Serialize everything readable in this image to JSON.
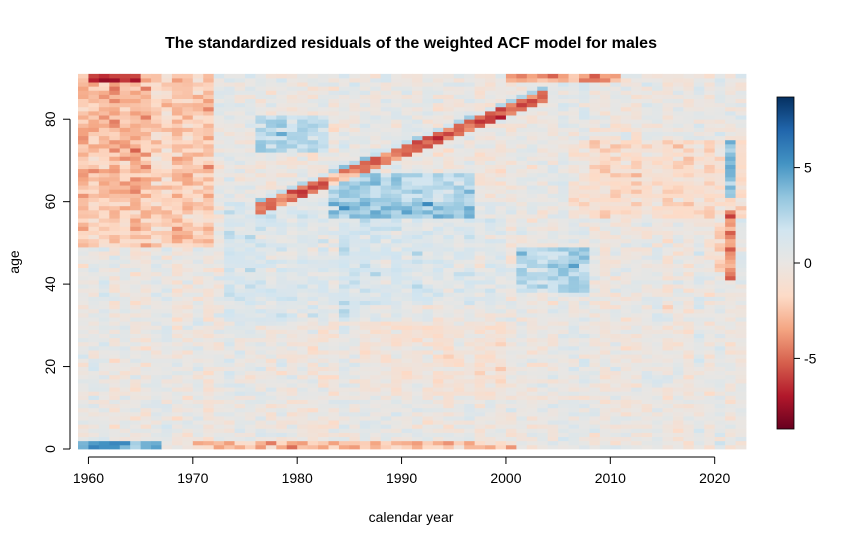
{
  "chart_data": {
    "type": "heatmap",
    "title": "The standardized residuals of the weighted ACF model for males",
    "xlabel": "calendar year",
    "ylabel": "age",
    "x_range": [
      1959,
      2022
    ],
    "y_range": [
      0,
      90
    ],
    "xlim": [
      1959,
      2023
    ],
    "ylim": [
      0,
      90
    ],
    "xticks": [
      1960,
      1970,
      1980,
      1990,
      2000,
      2010,
      2020
    ],
    "yticks": [
      0,
      20,
      40,
      60,
      80
    ],
    "colorbar": {
      "ticks": [
        5,
        0,
        -5
      ],
      "range": [
        -8.7,
        8.7
      ],
      "colors": [
        "#67001F",
        "#B2182B",
        "#D6604D",
        "#F4A582",
        "#FDDBC7",
        "#E9E6E3",
        "#D1E5F0",
        "#92C5DE",
        "#4393C3",
        "#2166AC",
        "#053061"
      ]
    },
    "features": {
      "cohort_diagonal": {
        "from": [
          1976,
          59
        ],
        "to": [
          2002,
          84
        ],
        "value": -4.5
      },
      "hot_top_edge_years": [
        1959,
        2010,
        "value",
        -6
      ],
      "blue_cluster_1": {
        "x": [
          1976,
          1982
        ],
        "y": [
          72,
          80
        ],
        "value": 3.5
      },
      "blue_cluster_2": {
        "x": [
          1983,
          1996
        ],
        "y": [
          56,
          66
        ],
        "value": 3.5
      },
      "blue_cluster_3": {
        "x": [
          2001,
          2007
        ],
        "y": [
          38,
          48
        ],
        "value": 3.5
      },
      "column_2021": {
        "young_old_value": 6,
        "middle_value": -5
      }
    }
  }
}
